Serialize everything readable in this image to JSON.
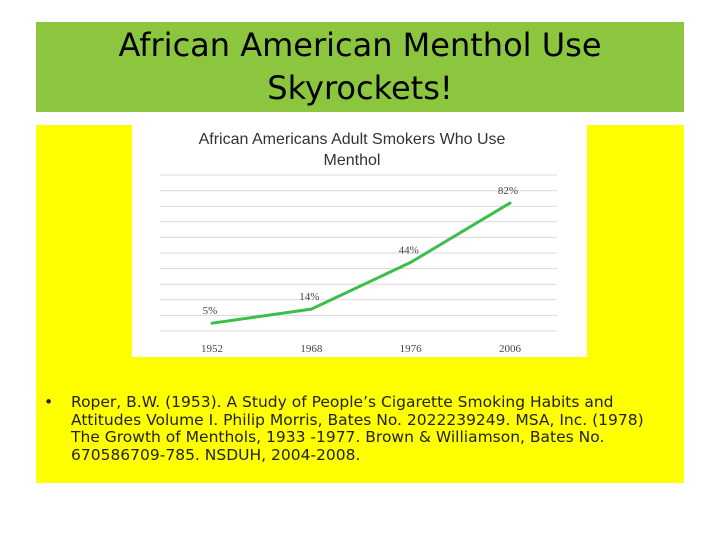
{
  "slide": {
    "title_line1": "African American Menthol Use",
    "title_line2": "Skyrockets!",
    "bullets": [
      "Roper, B.W.  (1953). A Study of People’s Cigarette Smoking Habits and Attitudes Volume I.  Philip Morris, Bates No. 2022239249. MSA, Inc. (1978)  The Growth of Menthols, 1933 -1977.  Brown & Williamson, Bates No. 670586709-785.  NSDUH, 2004-2008."
    ],
    "bullet_symbol": "•"
  },
  "colors": {
    "title_band": "#8cc63f",
    "panel": "#ffff00",
    "line": "#3cbf4a",
    "grid": "#d9d9d9"
  },
  "chart_data": {
    "type": "line",
    "title_line1": "African Americans Adult Smokers Who Use",
    "title_line2": "Menthol",
    "categories": [
      "1952",
      "1968",
      "1976",
      "2006"
    ],
    "values": [
      5,
      14,
      44,
      82
    ],
    "data_labels": [
      "5%",
      "14%",
      "44%",
      "82%"
    ],
    "ylim": [
      0,
      100
    ],
    "grid": true,
    "legend": "none"
  }
}
